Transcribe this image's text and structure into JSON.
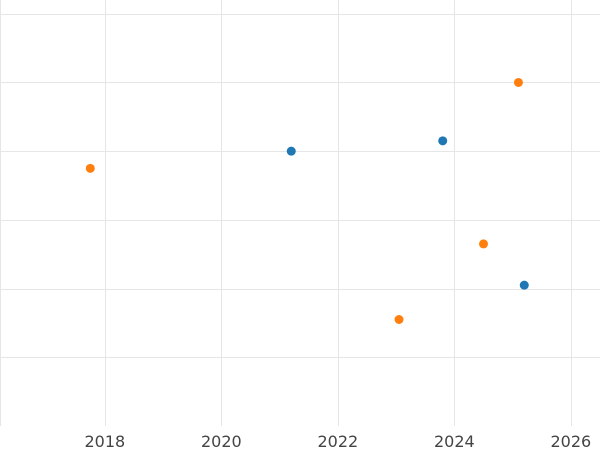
{
  "chart_data": {
    "type": "scatter",
    "title": "",
    "xlabel": "",
    "ylabel": "",
    "grid": true,
    "legend": "none",
    "xlim": [
      2016.2,
      2026.5
    ],
    "ylim": [
      0,
      6.2
    ],
    "x_ticks": [
      2018,
      2020,
      2022,
      2024,
      2026
    ],
    "x_tick_labels": [
      "2018",
      "2020",
      "2022",
      "2024",
      "2026"
    ],
    "y_grid_values": [
      1,
      2,
      3,
      4,
      5,
      6
    ],
    "series": [
      {
        "color": "#1f77b4",
        "points": [
          {
            "x": 2021.2,
            "y": 4.0
          },
          {
            "x": 2023.8,
            "y": 4.15
          },
          {
            "x": 2025.2,
            "y": 2.05
          }
        ]
      },
      {
        "color": "#ff7f0e",
        "points": [
          {
            "x": 2017.75,
            "y": 3.75
          },
          {
            "x": 2023.05,
            "y": 1.55
          },
          {
            "x": 2024.5,
            "y": 2.65
          },
          {
            "x": 2025.1,
            "y": 5.0
          }
        ]
      }
    ]
  }
}
